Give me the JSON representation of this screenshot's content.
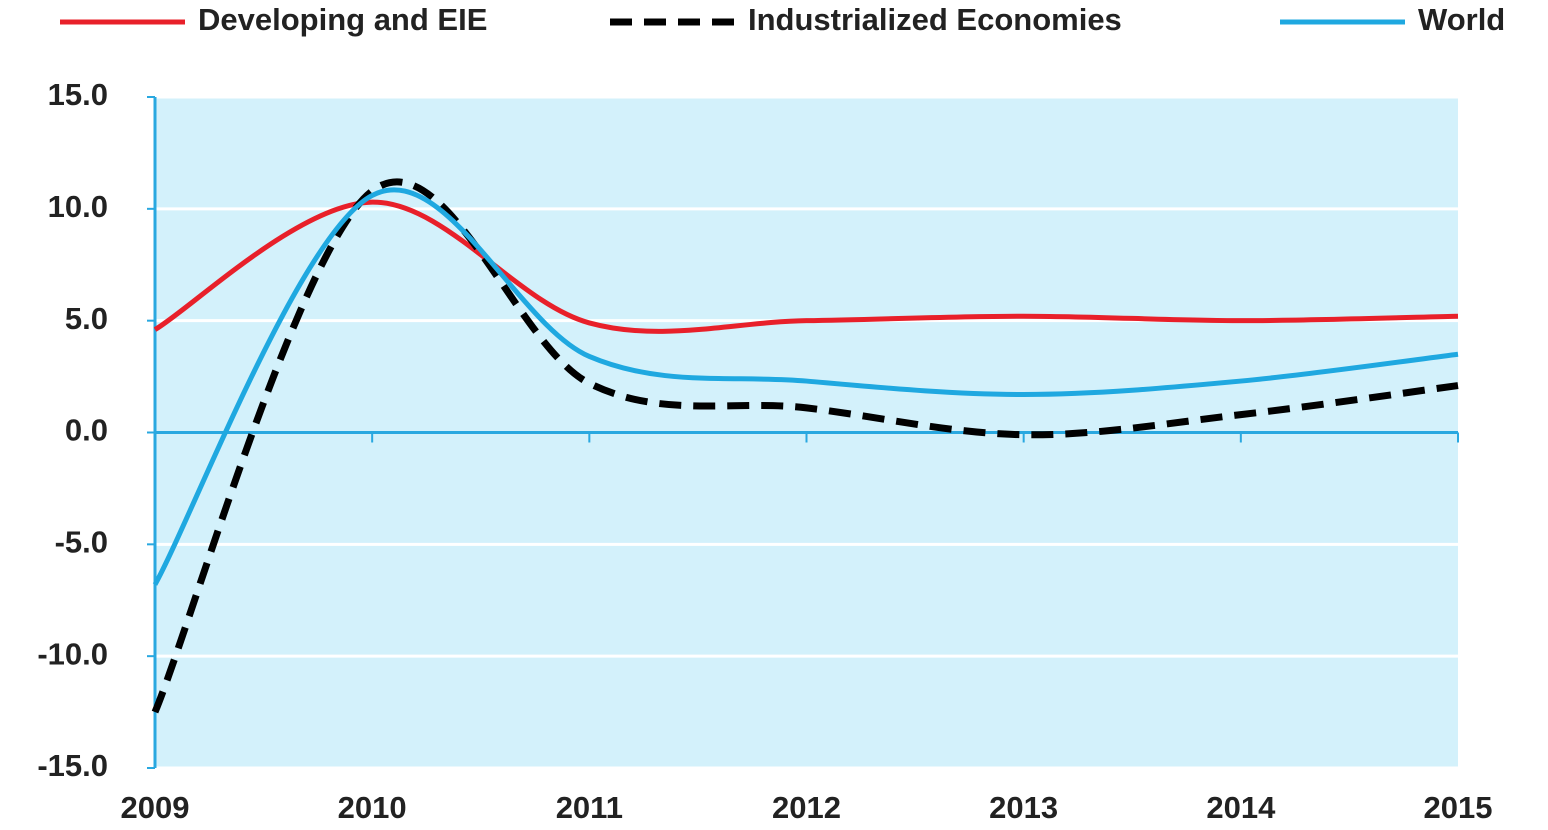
{
  "chart_data": {
    "type": "line",
    "x": [
      2009,
      2010,
      2011,
      2012,
      2013,
      2014,
      2015
    ],
    "xlim": [
      2009,
      2015
    ],
    "xticks": [
      2009,
      2010,
      2011,
      2012,
      2013,
      2014,
      2015
    ],
    "ylim": [
      -15,
      15
    ],
    "yticks": [
      {
        "value": -15,
        "label": "-15.0"
      },
      {
        "value": -10,
        "label": "-10.0"
      },
      {
        "value": -5,
        "label": "-5.0"
      },
      {
        "value": 0,
        "label": "0.0"
      },
      {
        "value": 5,
        "label": "5.0"
      },
      {
        "value": 10,
        "label": "10.0"
      },
      {
        "value": 15,
        "label": "15.0"
      }
    ],
    "grid": true,
    "legend": "top",
    "background": "#d3f1fb",
    "axis_color": "#29a8e0",
    "series": [
      {
        "name": "Developing and EIE",
        "color": "#e8202a",
        "dashed": false,
        "values": [
          4.6,
          10.3,
          4.9,
          5.0,
          5.2,
          5.0,
          5.2
        ]
      },
      {
        "name": "Industrialized Economies",
        "color": "#000000",
        "dashed": true,
        "values": [
          -12.5,
          10.8,
          2.2,
          1.1,
          -0.1,
          0.8,
          2.1
        ]
      },
      {
        "name": "World",
        "color": "#1fa8e0",
        "dashed": false,
        "values": [
          -6.8,
          10.6,
          3.4,
          2.3,
          1.7,
          2.3,
          3.5
        ]
      }
    ]
  }
}
